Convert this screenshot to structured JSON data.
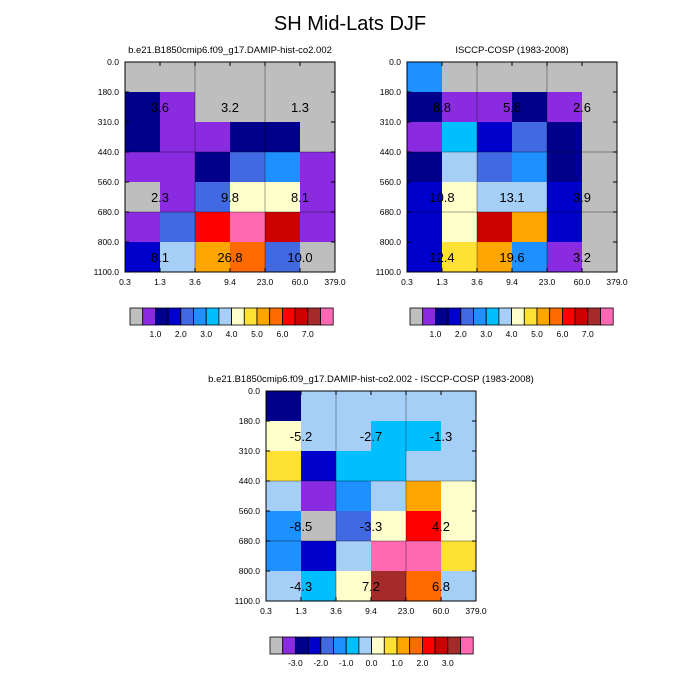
{
  "figure": {
    "title": "SH Mid-Lats DJF"
  },
  "chart_data": [
    {
      "type": "heatmap",
      "title": "b.e21.B1850cmip6.f09_g17.DAMIP-hist-co2.002",
      "xlabel": "",
      "ylabel": "",
      "x_ticks": [
        "0.3",
        "1.3",
        "3.6",
        "9.4",
        "23.0",
        "60.0",
        "379.0"
      ],
      "y_ticks": [
        "0.0",
        "180.0",
        "310.0",
        "440.0",
        "560.0",
        "680.0",
        "800.0",
        "1100.0"
      ],
      "cells": [
        [
          "#bebebe",
          "#bebebe",
          "#bebebe",
          "#bebebe",
          "#bebebe",
          "#bebebe"
        ],
        [
          "#00008b",
          "#8a2be2",
          "#bebebe",
          "#bebebe",
          "#bebebe",
          "#bebebe"
        ],
        [
          "#00008b",
          "#8a2be2",
          "#8a2be2",
          "#00008b",
          "#00008b",
          "#bebebe"
        ],
        [
          "#8a2be2",
          "#8a2be2",
          "#00008b",
          "#4169e1",
          "#1e90ff",
          "#8a2be2"
        ],
        [
          "#bebebe",
          "#8a2be2",
          "#4169e1",
          "#ffffcc",
          "#ffffcc",
          "#8a2be2"
        ],
        [
          "#8a2be2",
          "#4169e1",
          "#ff0000",
          "#ff69b4",
          "#cd0000",
          "#8a2be2"
        ],
        [
          "#0000cd",
          "#a6cff7",
          "#ffa500",
          "#ff6a00",
          "#4169e1",
          "#bebebe"
        ]
      ],
      "annotations": [
        {
          "text": "3.6",
          "col": 0,
          "row": 1
        },
        {
          "text": "3.2",
          "col": 2,
          "row": 1
        },
        {
          "text": "1.3",
          "col": 4,
          "row": 1
        },
        {
          "text": "2.3",
          "col": 0,
          "row": 4
        },
        {
          "text": "9.8",
          "col": 2,
          "row": 4
        },
        {
          "text": "8.1",
          "col": 4,
          "row": 4
        },
        {
          "text": "8.1",
          "col": 0,
          "row": 6
        },
        {
          "text": "26.8",
          "col": 2,
          "row": 6
        },
        {
          "text": "10.0",
          "col": 4,
          "row": 6
        }
      ],
      "legend": {
        "colors": [
          "#bebebe",
          "#8a2be2",
          "#00008b",
          "#0000cd",
          "#4169e1",
          "#1e90ff",
          "#00bfff",
          "#a6cff7",
          "#ffffcc",
          "#ffe135",
          "#ffa500",
          "#ff6a00",
          "#ff0000",
          "#cd0000",
          "#a52a2a",
          "#ff69b4"
        ],
        "labels": [
          "1.0",
          "2.0",
          "3.0",
          "4.0",
          "5.0",
          "6.0",
          "7.0"
        ],
        "label_after_box": [
          2,
          4,
          6,
          8,
          10,
          12,
          14
        ]
      }
    },
    {
      "type": "heatmap",
      "title": "ISCCP-COSP (1983-2008)",
      "xlabel": "",
      "ylabel": "",
      "x_ticks": [
        "0.3",
        "1.3",
        "3.6",
        "9.4",
        "23.0",
        "60.0",
        "379.0"
      ],
      "y_ticks": [
        "0.0",
        "180.0",
        "310.0",
        "440.0",
        "560.0",
        "680.0",
        "800.0",
        "1100.0"
      ],
      "cells": [
        [
          "#1e90ff",
          "#bebebe",
          "#bebebe",
          "#bebebe",
          "#bebebe",
          "#bebebe"
        ],
        [
          "#00008b",
          "#8a2be2",
          "#8a2be2",
          "#00008b",
          "#8a2be2",
          "#bebebe"
        ],
        [
          "#8a2be2",
          "#00bfff",
          "#0000cd",
          "#4169e1",
          "#00008b",
          "#bebebe"
        ],
        [
          "#00008b",
          "#a6cff7",
          "#4169e1",
          "#1e90ff",
          "#00008b",
          "#bebebe"
        ],
        [
          "#0000cd",
          "#ffffcc",
          "#a6cff7",
          "#a6cff7",
          "#0000cd",
          "#bebebe"
        ],
        [
          "#0000cd",
          "#ffffcc",
          "#cd0000",
          "#ffa500",
          "#0000cd",
          "#bebebe"
        ],
        [
          "#0000cd",
          "#ffe135",
          "#ffa500",
          "#1e90ff",
          "#8a2be2",
          "#bebebe"
        ]
      ],
      "annotations": [
        {
          "text": "8.8",
          "col": 0,
          "row": 1
        },
        {
          "text": "5.8",
          "col": 2,
          "row": 1
        },
        {
          "text": "2.6",
          "col": 4,
          "row": 1
        },
        {
          "text": "10.8",
          "col": 0,
          "row": 4
        },
        {
          "text": "13.1",
          "col": 2,
          "row": 4
        },
        {
          "text": "3.9",
          "col": 4,
          "row": 4
        },
        {
          "text": "12.4",
          "col": 0,
          "row": 6
        },
        {
          "text": "19.6",
          "col": 2,
          "row": 6
        },
        {
          "text": "3.2",
          "col": 4,
          "row": 6
        }
      ],
      "legend": {
        "colors": [
          "#bebebe",
          "#8a2be2",
          "#00008b",
          "#0000cd",
          "#4169e1",
          "#1e90ff",
          "#00bfff",
          "#a6cff7",
          "#ffffcc",
          "#ffe135",
          "#ffa500",
          "#ff6a00",
          "#ff0000",
          "#cd0000",
          "#a52a2a",
          "#ff69b4"
        ],
        "labels": [
          "1.0",
          "2.0",
          "3.0",
          "4.0",
          "5.0",
          "6.0",
          "7.0"
        ],
        "label_after_box": [
          2,
          4,
          6,
          8,
          10,
          12,
          14
        ]
      }
    },
    {
      "type": "heatmap",
      "title": "b.e21.B1850cmip6.f09_g17.DAMIP-hist-co2.002 - ISCCP-COSP (1983-2008)",
      "xlabel": "",
      "ylabel": "",
      "x_ticks": [
        "0.3",
        "1.3",
        "3.6",
        "9.4",
        "23.0",
        "60.0",
        "379.0"
      ],
      "y_ticks": [
        "0.0",
        "180.0",
        "310.0",
        "440.0",
        "560.0",
        "680.0",
        "800.0",
        "1100.0"
      ],
      "cells": [
        [
          "#00008b",
          "#a6cff7",
          "#a6cff7",
          "#a6cff7",
          "#a6cff7",
          "#a6cff7"
        ],
        [
          "#ffffcc",
          "#a6cff7",
          "#a6cff7",
          "#00bfff",
          "#00bfff",
          "#a6cff7"
        ],
        [
          "#ffe135",
          "#0000cd",
          "#00bfff",
          "#00bfff",
          "#a6cff7",
          "#a6cff7"
        ],
        [
          "#a6cff7",
          "#8a2be2",
          "#1e90ff",
          "#a6cff7",
          "#ffa500",
          "#ffffcc"
        ],
        [
          "#1e90ff",
          "#bebebe",
          "#4169e1",
          "#ffffcc",
          "#ff0000",
          "#ffffcc"
        ],
        [
          "#1e90ff",
          "#0000cd",
          "#a6cff7",
          "#ff69b4",
          "#ff69b4",
          "#ffe135"
        ],
        [
          "#a6cff7",
          "#00bfff",
          "#ffffcc",
          "#a52a2a",
          "#ff6a00",
          "#a6cff7"
        ]
      ],
      "annotations": [
        {
          "text": "-5.2",
          "col": 0,
          "row": 1
        },
        {
          "text": "-2.7",
          "col": 2,
          "row": 1
        },
        {
          "text": "-1.3",
          "col": 4,
          "row": 1
        },
        {
          "text": "-8.5",
          "col": 0,
          "row": 4
        },
        {
          "text": "-3.3",
          "col": 2,
          "row": 4
        },
        {
          "text": "4.2",
          "col": 4,
          "row": 4
        },
        {
          "text": "-4.3",
          "col": 0,
          "row": 6
        },
        {
          "text": "7.2",
          "col": 2,
          "row": 6
        },
        {
          "text": "6.8",
          "col": 4,
          "row": 6
        }
      ],
      "legend": {
        "colors": [
          "#bebebe",
          "#8a2be2",
          "#00008b",
          "#0000cd",
          "#4169e1",
          "#1e90ff",
          "#00bfff",
          "#a6cff7",
          "#ffffcc",
          "#ffe135",
          "#ffa500",
          "#ff6a00",
          "#ff0000",
          "#cd0000",
          "#a52a2a",
          "#ff69b4"
        ],
        "labels": [
          "-3.0",
          "-2.0",
          "-1.0",
          "0.0",
          "1.0",
          "2.0",
          "3.0"
        ],
        "label_after_box": [
          2,
          4,
          6,
          8,
          10,
          12,
          14
        ]
      }
    }
  ]
}
